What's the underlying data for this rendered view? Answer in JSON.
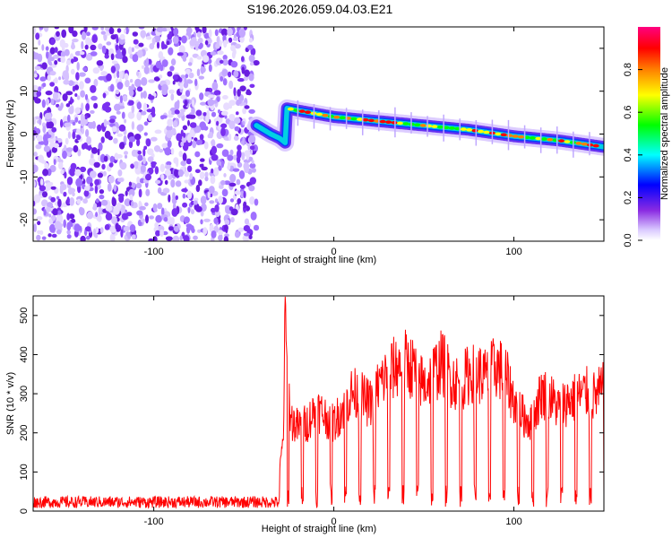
{
  "title": "S196.2026.059.04.03.E21",
  "chart_data": [
    {
      "type": "heatmap",
      "xlabel": "Height of straight line (km)",
      "ylabel": "Frequency (Hz)",
      "xlim": [
        -167,
        150
      ],
      "ylim": [
        -25,
        25
      ],
      "xticks": [
        -100,
        0,
        100
      ],
      "yticks": [
        -20,
        -10,
        0,
        10,
        20
      ],
      "colorbar": {
        "label": "Normalized spectral amplitude",
        "range": [
          0,
          1
        ],
        "ticks": [
          "0.0",
          "0.2",
          "0.4",
          "0.6",
          "0.8"
        ],
        "tick_values": [
          0,
          0.2,
          0.4,
          0.6,
          0.8
        ],
        "colormap": [
          "#ffffff",
          "#d9c8ff",
          "#8a2be2",
          "#0000ff",
          "#00ffff",
          "#00ff00",
          "#ffff00",
          "#ff8000",
          "#ff0000",
          "#ff0080"
        ]
      },
      "features": {
        "noise_region_x": [
          -167,
          -43
        ],
        "signal_track": {
          "x": [
            -43,
            -35,
            -30,
            -27,
            -26,
            -20,
            0,
            25,
            50,
            75,
            100,
            125,
            150
          ],
          "freq": [
            2,
            0,
            -1,
            -2,
            6,
            5.5,
            4,
            3,
            2,
            1,
            -0.5,
            -1.5,
            -3
          ]
        }
      }
    },
    {
      "type": "line",
      "xlabel": "Height of straight line (km)",
      "ylabel": "SNR (10 * v/v)",
      "xlim": [
        -167,
        150
      ],
      "ylim": [
        0,
        550
      ],
      "xticks": [
        -100,
        0,
        100
      ],
      "yticks": [
        0,
        100,
        200,
        300,
        400,
        500
      ],
      "line_color": "#ff0000",
      "series": [
        {
          "x": [
            -167,
            -140,
            -120,
            -100,
            -80,
            -60,
            -40,
            -32,
            -28,
            -27,
            -26,
            -24,
            -20,
            -15,
            -10,
            -5,
            0,
            5,
            10,
            15,
            20,
            25,
            30,
            35,
            40,
            45,
            50,
            55,
            60,
            65,
            70,
            75,
            80,
            85,
            90,
            95,
            100,
            105,
            110,
            115,
            120,
            125,
            130,
            135,
            140,
            145,
            150
          ],
          "values": [
            25,
            22,
            24,
            23,
            22,
            24,
            25,
            30,
            200,
            550,
            380,
            240,
            220,
            230,
            270,
            250,
            230,
            270,
            310,
            300,
            280,
            330,
            360,
            380,
            390,
            370,
            330,
            360,
            390,
            350,
            330,
            360,
            360,
            350,
            380,
            360,
            290,
            250,
            230,
            310,
            300,
            270,
            290,
            300,
            310,
            300,
            320
          ]
        }
      ]
    }
  ]
}
